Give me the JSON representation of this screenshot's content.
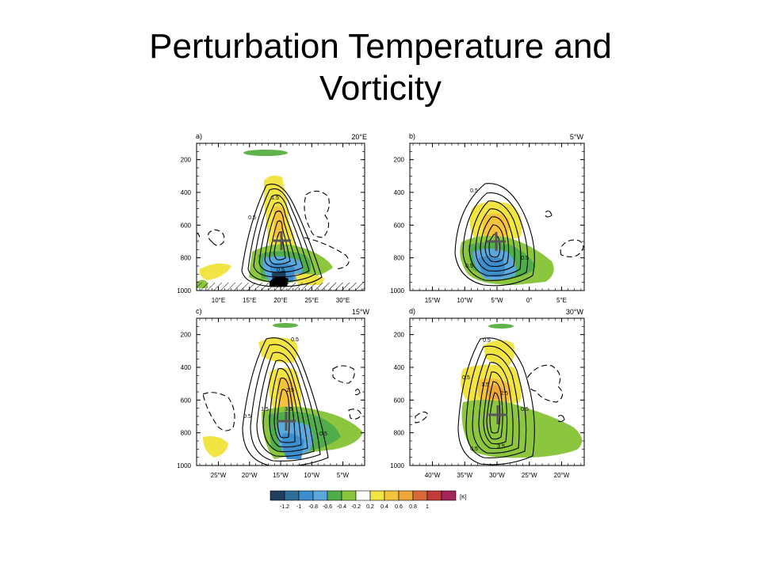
{
  "slide": {
    "title_line1": "Perturbation Temperature and",
    "title_line2": "Vorticity"
  },
  "chart_data": [
    {
      "type": "contour",
      "panel": "a)",
      "slice_label": "20°E",
      "y_ticks": [
        "200",
        "400",
        "600",
        "800",
        "1000"
      ],
      "x_ticks": [
        "10°E",
        "15°E",
        "20°E",
        "25°E",
        "30°E"
      ],
      "contour_labels": [
        "1.5",
        "0.5",
        "0.5"
      ],
      "terrain_hatched": true
    },
    {
      "type": "contour",
      "panel": "b)",
      "slice_label": "5°W",
      "y_ticks": [
        "200",
        "400",
        "600",
        "800",
        "1000"
      ],
      "x_ticks": [
        "15°W",
        "10°W",
        "5°W",
        "0°",
        "5°E"
      ],
      "contour_labels": [
        "0.5",
        "0.5",
        "0.5"
      ]
    },
    {
      "type": "contour",
      "panel": "c)",
      "slice_label": "15°W",
      "y_ticks": [
        "200",
        "400",
        "600",
        "800",
        "1000"
      ],
      "x_ticks": [
        "25°W",
        "20°W",
        "15°W",
        "10°W",
        "5°W"
      ],
      "contour_labels": [
        "0.5",
        "2.5",
        "1.5",
        "3.5",
        "0.5",
        "0.5"
      ]
    },
    {
      "type": "contour",
      "panel": "d)",
      "slice_label": "30°W",
      "y_ticks": [
        "200",
        "400",
        "600",
        "800",
        "1000"
      ],
      "x_ticks": [
        "40°W",
        "35°W",
        "30°W",
        "25°W",
        "20°W"
      ],
      "contour_labels": [
        "0.5",
        "0.5",
        "1.5",
        "2.5",
        "0.5",
        "0.5",
        "3.5"
      ]
    }
  ],
  "colorbar": {
    "labels": [
      "-1.2",
      "-1",
      "-0.8",
      "-0.6",
      "-0.4",
      "-0.2",
      "0.2",
      "0.4",
      "0.6",
      "0.8",
      "1"
    ],
    "unit": "[K]",
    "colors": [
      "#1f3f5f",
      "#2d6f96",
      "#3c8fcc",
      "#5aa8dc",
      "#4fae4a",
      "#8cc63f",
      "#ffffff",
      "#f1e443",
      "#f5c23e",
      "#eea73a",
      "#d86a3a",
      "#c33a3a",
      "#a3245a"
    ]
  }
}
